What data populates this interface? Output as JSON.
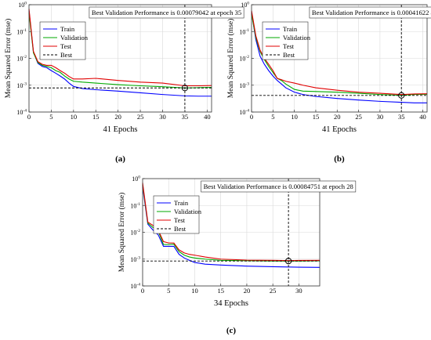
{
  "chart_data": [
    {
      "type": "line",
      "panel_label": "(a)",
      "title": "Best Validation Performance is 0.00079042 at epoch 35",
      "xlabel": "41 Epochs",
      "ylabel": "Mean Squared Error  (mse)",
      "xlim": [
        0,
        41
      ],
      "ylim": [
        0.0001,
        1
      ],
      "y_scale": "log",
      "x_ticks": [
        0,
        5,
        10,
        15,
        20,
        25,
        30,
        35,
        40
      ],
      "legend_position": "top-left",
      "best": {
        "epoch": 35,
        "value": 0.00079042
      },
      "series": [
        {
          "name": "Train",
          "color": "#0000ff",
          "x": [
            0,
            1,
            2,
            3,
            4,
            5,
            6,
            7,
            8,
            9,
            10,
            12,
            15,
            20,
            25,
            30,
            35,
            38,
            41
          ],
          "y": [
            0.6,
            0.017,
            0.0065,
            0.005,
            0.0045,
            0.0035,
            0.0028,
            0.0022,
            0.0017,
            0.0012,
            0.0009,
            0.00075,
            0.00068,
            0.0006,
            0.00052,
            0.00045,
            0.0004,
            0.00039,
            0.00039
          ]
        },
        {
          "name": "Validation",
          "color": "#00aa00",
          "x": [
            0,
            1,
            2,
            3,
            4,
            5,
            6,
            7,
            8,
            9,
            10,
            12,
            15,
            20,
            25,
            30,
            35,
            38,
            41
          ],
          "y": [
            0.5,
            0.016,
            0.007,
            0.0055,
            0.005,
            0.0045,
            0.0035,
            0.003,
            0.0022,
            0.0017,
            0.0014,
            0.0013,
            0.0012,
            0.00105,
            0.00095,
            0.00088,
            0.00079,
            0.00081,
            0.00083
          ]
        },
        {
          "name": "Test",
          "color": "#e00000",
          "x": [
            0,
            1,
            2,
            3,
            4,
            5,
            6,
            7,
            8,
            9,
            10,
            12,
            15,
            20,
            25,
            30,
            35,
            38,
            41
          ],
          "y": [
            0.7,
            0.018,
            0.0075,
            0.006,
            0.0055,
            0.0055,
            0.0045,
            0.0035,
            0.0028,
            0.0021,
            0.0017,
            0.0017,
            0.0018,
            0.0015,
            0.0013,
            0.0012,
            0.00095,
            0.00095,
            0.00097
          ]
        }
      ]
    },
    {
      "type": "line",
      "panel_label": "(b)",
      "title": "Best Validation Performance is 0.00041622 at epoch 35",
      "xlabel": "41 Epochs",
      "ylabel": "Mean Squared Error  (mse)",
      "xlim": [
        0,
        41
      ],
      "ylim": [
        0.0001,
        1
      ],
      "y_scale": "log",
      "x_ticks": [
        0,
        5,
        10,
        15,
        20,
        25,
        30,
        35,
        40
      ],
      "legend_position": "top-left",
      "best": {
        "epoch": 35,
        "value": 0.00041622
      },
      "series": [
        {
          "name": "Train",
          "color": "#0000ff",
          "x": [
            0,
            1,
            2,
            3,
            4,
            5,
            6,
            7,
            8,
            10,
            12,
            15,
            20,
            25,
            30,
            35,
            38,
            41
          ],
          "y": [
            0.5,
            0.05,
            0.012,
            0.006,
            0.0035,
            0.0022,
            0.0015,
            0.0011,
            0.0008,
            0.00055,
            0.00045,
            0.00038,
            0.00032,
            0.00028,
            0.00025,
            0.00023,
            0.00022,
            0.00022
          ]
        },
        {
          "name": "Validation",
          "color": "#00aa00",
          "x": [
            0,
            1,
            2,
            3,
            4,
            5,
            6,
            7,
            8,
            10,
            12,
            15,
            20,
            25,
            30,
            35,
            38,
            41
          ],
          "y": [
            0.45,
            0.06,
            0.018,
            0.009,
            0.005,
            0.003,
            0.0018,
            0.0015,
            0.0011,
            0.0007,
            0.0006,
            0.00058,
            0.00055,
            0.0005,
            0.00045,
            0.00042,
            0.00045,
            0.00046
          ]
        },
        {
          "name": "Test",
          "color": "#e00000",
          "x": [
            0,
            1,
            2,
            3,
            4,
            5,
            6,
            7,
            8,
            10,
            12,
            15,
            20,
            25,
            30,
            35,
            38,
            41
          ],
          "y": [
            0.6,
            0.07,
            0.02,
            0.01,
            0.006,
            0.0035,
            0.0018,
            0.0016,
            0.0014,
            0.0012,
            0.001,
            0.0008,
            0.00065,
            0.00055,
            0.0005,
            0.00045,
            0.00047,
            0.00048
          ]
        }
      ]
    },
    {
      "type": "line",
      "panel_label": "(c)",
      "title": "Best Validation Performance is 0.00084751 at epoch 28",
      "xlabel": "34 Epochs",
      "ylabel": "Mean Squared Error  (mse)",
      "xlim": [
        0,
        34
      ],
      "ylim": [
        0.0001,
        1
      ],
      "y_scale": "log",
      "x_ticks": [
        0,
        5,
        10,
        15,
        20,
        25,
        30
      ],
      "legend_position": "top-left",
      "best": {
        "epoch": 28,
        "value": 0.00084751
      },
      "series": [
        {
          "name": "Train",
          "color": "#0000ff",
          "x": [
            0,
            1,
            2,
            3,
            4,
            5,
            6,
            7,
            8,
            9,
            10,
            12,
            15,
            20,
            25,
            28,
            30,
            34
          ],
          "y": [
            0.5,
            0.02,
            0.012,
            0.008,
            0.003,
            0.003,
            0.003,
            0.0015,
            0.0011,
            0.0009,
            0.00075,
            0.00065,
            0.0006,
            0.00055,
            0.00052,
            0.00051,
            0.0005,
            0.00049
          ]
        },
        {
          "name": "Validation",
          "color": "#00aa00",
          "x": [
            0,
            1,
            2,
            3,
            4,
            5,
            6,
            7,
            8,
            9,
            10,
            12,
            15,
            20,
            25,
            28,
            30,
            34
          ],
          "y": [
            0.6,
            0.022,
            0.015,
            0.011,
            0.0035,
            0.0035,
            0.0036,
            0.0019,
            0.0014,
            0.0012,
            0.0011,
            0.001,
            0.0009,
            0.00087,
            0.00085,
            0.00085,
            0.00085,
            0.00086
          ]
        },
        {
          "name": "Test",
          "color": "#e00000",
          "x": [
            0,
            1,
            2,
            3,
            4,
            5,
            6,
            7,
            8,
            9,
            10,
            12,
            15,
            20,
            25,
            28,
            30,
            34
          ],
          "y": [
            0.7,
            0.024,
            0.018,
            0.012,
            0.0045,
            0.004,
            0.004,
            0.0022,
            0.0017,
            0.0015,
            0.0014,
            0.0012,
            0.001,
            0.00092,
            0.0009,
            0.00088,
            0.00089,
            0.0009
          ]
        }
      ]
    }
  ],
  "best_legend_label": "Best"
}
